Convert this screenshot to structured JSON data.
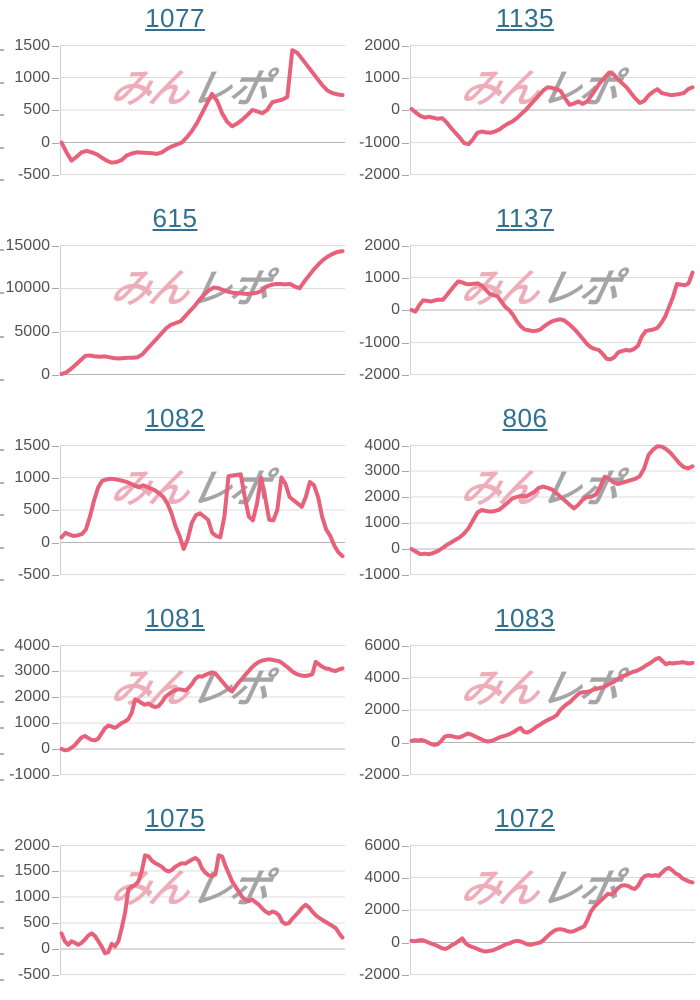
{
  "page": {
    "description": "Grid of 10 machine slump graphs, 2 columns x 5 rows, each with a linked machine number title and a cumulative payout line chart",
    "watermark_pink_text": "みん",
    "watermark_gray_text": "レポ"
  },
  "colors": {
    "series_line": "#e7617a",
    "title_link": "#31708f",
    "axis_label": "#525252",
    "gridline": "#dcdcdc",
    "zero_line": "#b5b5b5",
    "axis_line": "#d2d2d2",
    "watermark_pink": "#efadba",
    "watermark_gray": "#a5a5a5"
  },
  "chart_data": [
    {
      "type": "line",
      "title": "1077",
      "title_is_link": true,
      "ylim": [
        -500,
        1500
      ],
      "yticks": [
        1500,
        1000,
        500,
        0,
        -500
      ],
      "grid": true,
      "legend": "none",
      "xlabel": "",
      "ylabel": "",
      "values": [
        0,
        -150,
        -280,
        -220,
        -150,
        -130,
        -150,
        -180,
        -230,
        -280,
        -310,
        -300,
        -270,
        -200,
        -170,
        -150,
        -155,
        -160,
        -165,
        -175,
        -150,
        -100,
        -60,
        -30,
        0,
        80,
        180,
        300,
        450,
        600,
        750,
        640,
        450,
        320,
        250,
        290,
        350,
        420,
        500,
        480,
        450,
        500,
        620,
        640,
        660,
        700,
        1420,
        1380,
        1280,
        1180,
        1080,
        980,
        880,
        800,
        760,
        740,
        730
      ]
    },
    {
      "type": "line",
      "title": "1135",
      "title_is_link": true,
      "ylim": [
        -2000,
        2000
      ],
      "yticks": [
        2000,
        1000,
        0,
        -1000,
        -2000
      ],
      "grid": true,
      "legend": "none",
      "xlabel": "",
      "ylabel": "",
      "values": [
        30,
        -80,
        -180,
        -230,
        -210,
        -240,
        -270,
        -250,
        -380,
        -550,
        -700,
        -850,
        -1020,
        -1050,
        -900,
        -700,
        -660,
        -690,
        -700,
        -660,
        -600,
        -500,
        -420,
        -350,
        -250,
        -120,
        0,
        150,
        300,
        450,
        600,
        700,
        680,
        640,
        580,
        350,
        160,
        200,
        260,
        190,
        260,
        450,
        650,
        850,
        1000,
        1150,
        1100,
        950,
        820,
        700,
        520,
        350,
        220,
        280,
        450,
        560,
        640,
        520,
        490,
        460,
        470,
        490,
        520,
        640,
        700
      ]
    },
    {
      "type": "line",
      "title": "615",
      "title_is_link": true,
      "ylim": [
        0,
        15000
      ],
      "yticks": [
        15000,
        10000,
        5000,
        0
      ],
      "grid": true,
      "legend": "none",
      "xlabel": "",
      "ylabel": "",
      "values": [
        100,
        300,
        700,
        1200,
        1700,
        2200,
        2250,
        2150,
        2100,
        2150,
        2050,
        1950,
        1900,
        1950,
        2000,
        2000,
        2050,
        2400,
        3000,
        3600,
        4200,
        4800,
        5400,
        5800,
        6000,
        6200,
        6800,
        7400,
        8000,
        8700,
        9300,
        9800,
        10100,
        10000,
        9800,
        9600,
        9500,
        9450,
        9400,
        9350,
        9400,
        9500,
        9700,
        10200,
        10400,
        10500,
        10500,
        10450,
        10500,
        10200,
        10000,
        10800,
        11500,
        12200,
        12800,
        13300,
        13700,
        14000,
        14200,
        14300
      ]
    },
    {
      "type": "line",
      "title": "1137",
      "title_is_link": true,
      "ylim": [
        -2000,
        2000
      ],
      "yticks": [
        2000,
        1000,
        0,
        -1000,
        -2000
      ],
      "grid": true,
      "legend": "none",
      "xlabel": "",
      "ylabel": "",
      "values": [
        0,
        -50,
        150,
        300,
        280,
        260,
        300,
        320,
        310,
        450,
        600,
        750,
        880,
        850,
        800,
        790,
        810,
        820,
        750,
        620,
        500,
        460,
        420,
        260,
        100,
        0,
        -150,
        -350,
        -500,
        -600,
        -620,
        -650,
        -640,
        -600,
        -500,
        -420,
        -350,
        -310,
        -290,
        -310,
        -400,
        -500,
        -620,
        -760,
        -900,
        -1050,
        -1150,
        -1200,
        -1230,
        -1350,
        -1500,
        -1520,
        -1450,
        -1300,
        -1260,
        -1230,
        -1250,
        -1200,
        -1100,
        -820,
        -650,
        -620,
        -600,
        -550,
        -400,
        -200,
        100,
        400,
        800,
        780,
        760,
        820,
        1150
      ]
    },
    {
      "type": "line",
      "title": "1082",
      "title_is_link": true,
      "ylim": [
        -500,
        1500
      ],
      "yticks": [
        1500,
        1000,
        500,
        0,
        -500
      ],
      "grid": true,
      "legend": "none",
      "xlabel": "",
      "ylabel": "",
      "values": [
        80,
        150,
        120,
        100,
        110,
        130,
        200,
        400,
        650,
        850,
        950,
        970,
        980,
        975,
        965,
        950,
        930,
        905,
        875,
        850,
        880,
        855,
        830,
        800,
        755,
        700,
        600,
        450,
        250,
        100,
        -100,
        50,
        300,
        420,
        450,
        400,
        350,
        150,
        100,
        80,
        400,
        1020,
        1030,
        1040,
        1050,
        700,
        400,
        340,
        600,
        1000,
        700,
        350,
        340,
        500,
        1000,
        900,
        700,
        650,
        600,
        550,
        700,
        930,
        880,
        700,
        400,
        200,
        100,
        -50,
        -150,
        -210
      ]
    },
    {
      "type": "line",
      "title": "806",
      "title_is_link": true,
      "ylim": [
        -1000,
        4000
      ],
      "yticks": [
        4000,
        3000,
        2000,
        1000,
        0,
        -1000
      ],
      "grid": true,
      "legend": "none",
      "xlabel": "",
      "ylabel": "",
      "values": [
        0,
        -100,
        -200,
        -180,
        -200,
        -150,
        -80,
        30,
        150,
        250,
        350,
        450,
        600,
        800,
        1100,
        1400,
        1500,
        1460,
        1440,
        1460,
        1510,
        1650,
        1800,
        1950,
        2000,
        2050,
        2010,
        2100,
        2200,
        2350,
        2400,
        2350,
        2290,
        2150,
        2000,
        1850,
        1700,
        1560,
        1700,
        1900,
        2000,
        2010,
        2100,
        2400,
        2780,
        2700,
        2560,
        2500,
        2550,
        2600,
        2650,
        2700,
        2800,
        3100,
        3620,
        3820,
        3950,
        3940,
        3840,
        3700,
        3500,
        3300,
        3150,
        3100,
        3180
      ]
    },
    {
      "type": "line",
      "title": "1081",
      "title_is_link": true,
      "ylim": [
        -1000,
        4000
      ],
      "yticks": [
        4000,
        3000,
        2000,
        1000,
        0,
        -1000
      ],
      "grid": true,
      "legend": "none",
      "xlabel": "",
      "ylabel": "",
      "values": [
        0,
        -50,
        -30,
        50,
        150,
        300,
        450,
        500,
        420,
        350,
        330,
        400,
        600,
        800,
        900,
        860,
        810,
        900,
        1000,
        1060,
        1150,
        1400,
        1900,
        1850,
        1760,
        1700,
        1750,
        1660,
        1610,
        1650,
        1800,
        2000,
        2100,
        2200,
        2260,
        2300,
        2280,
        2250,
        2350,
        2500,
        2700,
        2800,
        2780,
        2850,
        2900,
        2950,
        2900,
        2760,
        2600,
        2450,
        2300,
        2210,
        2400,
        2560,
        2700,
        2860,
        3000,
        3150,
        3260,
        3350,
        3400,
        3430,
        3450,
        3430,
        3400,
        3380,
        3300,
        3200,
        3100,
        2980,
        2900,
        2850,
        2820,
        2810,
        2830,
        2880,
        3350,
        3250,
        3160,
        3100,
        3080,
        3020,
        3000,
        3060,
        3100
      ]
    },
    {
      "type": "line",
      "title": "1083",
      "title_is_link": true,
      "ylim": [
        -2000,
        6000
      ],
      "yticks": [
        6000,
        4000,
        2000,
        0,
        -2000
      ],
      "grid": true,
      "legend": "none",
      "xlabel": "",
      "ylabel": "",
      "values": [
        100,
        150,
        120,
        160,
        100,
        0,
        -100,
        -150,
        -100,
        100,
        350,
        420,
        400,
        350,
        310,
        350,
        450,
        550,
        500,
        400,
        300,
        210,
        110,
        60,
        90,
        160,
        260,
        350,
        400,
        460,
        560,
        660,
        800,
        900,
        660,
        610,
        700,
        850,
        1000,
        1110,
        1250,
        1360,
        1460,
        1560,
        1700,
        2000,
        2200,
        2360,
        2500,
        2700,
        2900,
        3050,
        3100,
        3110,
        3160,
        3250,
        3300,
        3360,
        3400,
        3500,
        3610,
        3710,
        3850,
        4000,
        4100,
        4160,
        4260,
        4350,
        4400,
        4500,
        4610,
        4750,
        4860,
        5000,
        5150,
        5200,
        5000,
        4810,
        4900,
        4860,
        4900,
        4910,
        4950,
        4900,
        4860,
        4900
      ]
    },
    {
      "type": "line",
      "title": "1075",
      "title_is_link": true,
      "ylim": [
        -500,
        2000
      ],
      "yticks": [
        2000,
        1500,
        1000,
        500,
        0,
        -500
      ],
      "grid": true,
      "legend": "none",
      "xlabel": "",
      "ylabel": "",
      "values": [
        300,
        150,
        80,
        150,
        120,
        80,
        120,
        180,
        260,
        300,
        250,
        150,
        50,
        -80,
        -60,
        100,
        50,
        150,
        400,
        700,
        1150,
        1200,
        1230,
        1300,
        1500,
        1800,
        1780,
        1700,
        1650,
        1620,
        1580,
        1520,
        1490,
        1520,
        1580,
        1620,
        1650,
        1640,
        1680,
        1720,
        1750,
        1700,
        1550,
        1470,
        1420,
        1400,
        1430,
        1800,
        1780,
        1600,
        1450,
        1300,
        1200,
        1100,
        1000,
        950,
        920,
        950,
        900,
        850,
        780,
        720,
        680,
        720,
        700,
        650,
        520,
        480,
        500,
        580,
        650,
        720,
        800,
        850,
        800,
        720,
        650,
        600,
        560,
        520,
        480,
        440,
        400,
        300,
        220
      ]
    },
    {
      "type": "line",
      "title": "1072",
      "title_is_link": true,
      "ylim": [
        -2000,
        6000
      ],
      "yticks": [
        6000,
        4000,
        2000,
        0,
        -2000
      ],
      "grid": true,
      "legend": "none",
      "xlabel": "",
      "ylabel": "",
      "values": [
        100,
        80,
        120,
        150,
        100,
        0,
        -80,
        -150,
        -250,
        -350,
        -400,
        -300,
        -150,
        -50,
        100,
        250,
        -50,
        -200,
        -280,
        -350,
        -450,
        -520,
        -560,
        -520,
        -480,
        -400,
        -300,
        -200,
        -100,
        -50,
        50,
        100,
        80,
        0,
        -100,
        -150,
        -100,
        -50,
        0,
        150,
        350,
        550,
        700,
        800,
        820,
        780,
        700,
        660,
        700,
        800,
        900,
        1000,
        1400,
        1900,
        2200,
        2400,
        2600,
        2800,
        3000,
        2950,
        3100,
        3350,
        3500,
        3520,
        3480,
        3350,
        3300,
        3500,
        3900,
        4100,
        4150,
        4100,
        4150,
        4100,
        4300,
        4500,
        4600,
        4450,
        4250,
        4150,
        3950,
        3850,
        3750,
        3700
      ]
    }
  ]
}
